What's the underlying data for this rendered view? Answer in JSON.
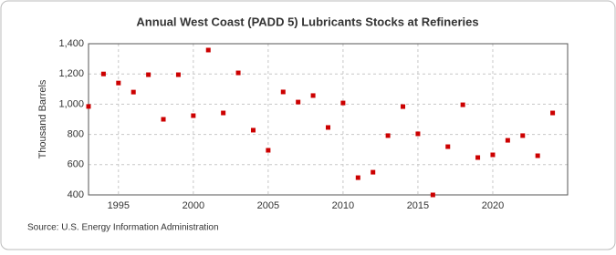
{
  "chart_data": {
    "type": "scatter",
    "title": "Annual West Coast (PADD 5) Lubricants Stocks at Refineries",
    "y_label": "Thousand Barrels",
    "source": "Source: U.S. Energy Information Administration",
    "x": [
      1993,
      1994,
      1995,
      1996,
      1997,
      1998,
      1999,
      2000,
      2001,
      2002,
      2003,
      2004,
      2005,
      2006,
      2007,
      2008,
      2009,
      2010,
      2011,
      2012,
      2013,
      2014,
      2015,
      2016,
      2017,
      2018,
      2019,
      2020,
      2021,
      2022,
      2023,
      2024
    ],
    "series": [
      {
        "color": "#cc0000",
        "values": [
          985,
          1200,
          1140,
          1080,
          1195,
          900,
          1195,
          924,
          1358,
          942,
          1207,
          828,
          695,
          1081,
          1014,
          1057,
          846,
          1008,
          514,
          550,
          792,
          984,
          804,
          400,
          719,
          996,
          647,
          665,
          761,
          792,
          659,
          942
        ]
      }
    ],
    "xlim": [
      1993,
      2025
    ],
    "xticks": [
      1995,
      2000,
      2005,
      2010,
      2015,
      2020
    ],
    "ylim": [
      400,
      1400
    ],
    "yticks": [
      {
        "value": 400,
        "label": "400"
      },
      {
        "value": 600,
        "label": "600"
      },
      {
        "value": 800,
        "label": "800"
      },
      {
        "value": 1000,
        "label": "1,000"
      },
      {
        "value": 1200,
        "label": "1,200"
      },
      {
        "value": 1400,
        "label": "1,400"
      }
    ],
    "grid": true
  }
}
